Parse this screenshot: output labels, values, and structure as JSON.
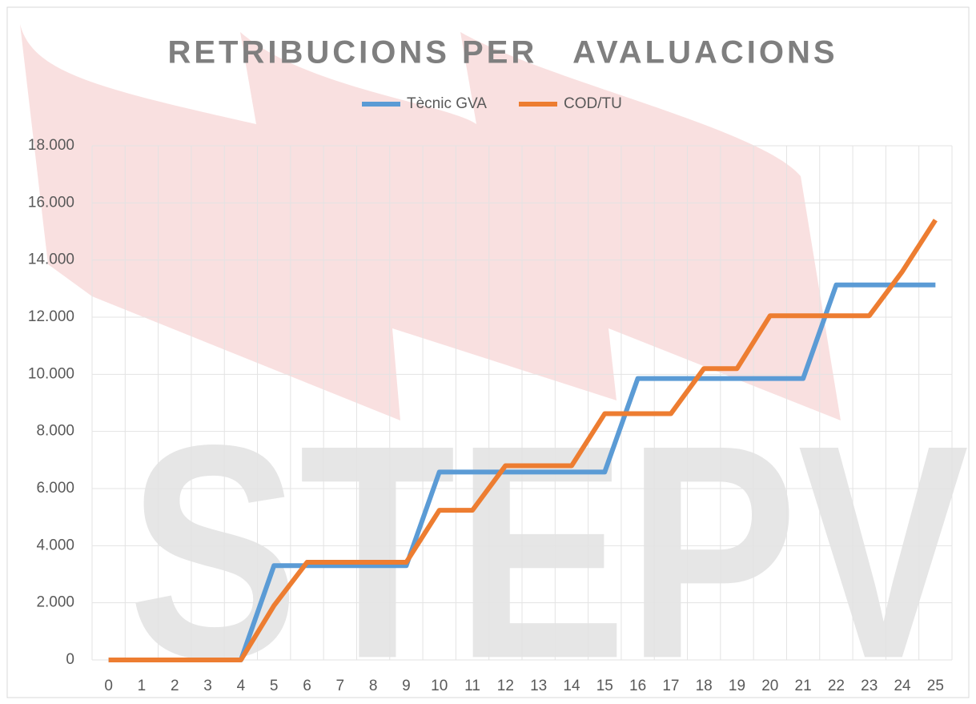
{
  "chart_data": {
    "type": "line",
    "title": "RETRIBUCIONS PER   AVALUACIONS",
    "watermark": "STEPV",
    "categories": [
      "0",
      "1",
      "2",
      "3",
      "4",
      "5",
      "6",
      "7",
      "8",
      "9",
      "10",
      "11",
      "12",
      "13",
      "14",
      "15",
      "16",
      "17",
      "18",
      "19",
      "20",
      "21",
      "22",
      "23",
      "24",
      "25"
    ],
    "series": [
      {
        "name": "Tècnic GVA",
        "color": "#5b9bd5",
        "values": [
          0,
          0,
          0,
          0,
          0,
          3300,
          3300,
          3300,
          3300,
          3300,
          6580,
          6580,
          6580,
          6580,
          6580,
          6580,
          9850,
          9850,
          9850,
          9850,
          9850,
          9850,
          13130,
          13130,
          13130,
          13130
        ]
      },
      {
        "name": "COD/TU",
        "color": "#ed7d31",
        "values": [
          0,
          0,
          0,
          0,
          0,
          1900,
          3420,
          3420,
          3420,
          3420,
          5240,
          5240,
          6800,
          6800,
          6800,
          8620,
          8620,
          8620,
          10200,
          10200,
          12050,
          12050,
          12050,
          12050,
          13600,
          15400
        ]
      }
    ],
    "ylim": [
      0,
      18000
    ],
    "yticks": [
      {
        "value": 0,
        "label": "0"
      },
      {
        "value": 2000,
        "label": "2.000"
      },
      {
        "value": 4000,
        "label": "4.000"
      },
      {
        "value": 6000,
        "label": "6.000"
      },
      {
        "value": 8000,
        "label": "8.000"
      },
      {
        "value": 10000,
        "label": "10.000"
      },
      {
        "value": 12000,
        "label": "12.000"
      },
      {
        "value": 14000,
        "label": "14.000"
      },
      {
        "value": 16000,
        "label": "16.000"
      },
      {
        "value": 18000,
        "label": "18.000"
      }
    ],
    "grid": true,
    "legend": "top"
  }
}
